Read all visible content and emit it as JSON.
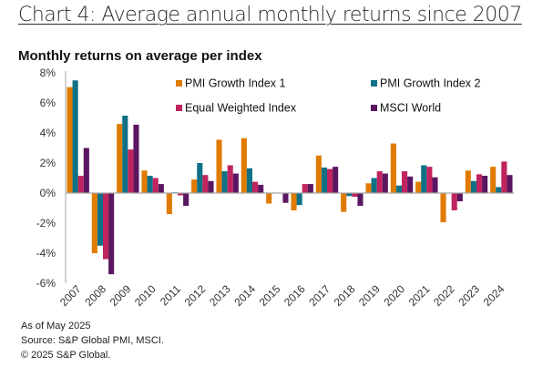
{
  "header": {
    "title": "Chart 4: Average annual monthly returns since 2007",
    "subtitle": "Monthly returns on average per index"
  },
  "footer": {
    "as_of": "As of May 2025",
    "source": "Source: S&P Global PMI, MSCI.",
    "copyright": "© 2025 S&P Global."
  },
  "chart_data": {
    "type": "bar",
    "title": "Monthly returns on average per index",
    "xlabel": "",
    "ylabel": "",
    "ylim": [
      -6,
      8
    ],
    "yticks": [
      8,
      6,
      4,
      2,
      0,
      -2,
      -4,
      -6
    ],
    "ytick_labels": [
      "8%",
      "6%",
      "4%",
      "2%",
      "0%",
      "-2%",
      "-4%",
      "-6%"
    ],
    "grid": false,
    "legend_position": "top-right",
    "categories": [
      "2007",
      "2008",
      "2009",
      "2010",
      "2011",
      "2012",
      "2013",
      "2014",
      "2015",
      "2016",
      "2017",
      "2018",
      "2019",
      "2020",
      "2021",
      "2022",
      "2023",
      "2024"
    ],
    "series": [
      {
        "name": "PMI Growth Index 1",
        "color": "#E07B00",
        "values": [
          7.05,
          -4.0,
          4.6,
          1.5,
          -1.4,
          0.9,
          3.55,
          3.65,
          -0.7,
          -1.15,
          2.5,
          -1.25,
          0.65,
          3.3,
          0.75,
          -1.95,
          1.5,
          1.75
        ]
      },
      {
        "name": "PMI Growth Index 2",
        "color": "#0E7186",
        "values": [
          7.5,
          -3.5,
          5.15,
          1.15,
          0.05,
          2.0,
          1.45,
          1.65,
          0.0,
          -0.8,
          1.7,
          -0.2,
          1.0,
          0.5,
          1.85,
          0.0,
          0.8,
          0.4
        ]
      },
      {
        "name": "Equal Weighted Index",
        "color": "#C0245E",
        "values": [
          1.15,
          -4.4,
          2.9,
          1.0,
          -0.15,
          1.2,
          1.85,
          0.75,
          0.0,
          0.6,
          1.6,
          -0.25,
          1.45,
          1.45,
          1.75,
          -1.15,
          1.25,
          2.1
        ]
      },
      {
        "name": "MSCI World",
        "color": "#5A1660",
        "values": [
          3.0,
          -5.4,
          4.55,
          0.6,
          -0.85,
          0.8,
          1.3,
          0.55,
          -0.65,
          0.6,
          1.75,
          -0.85,
          1.3,
          1.1,
          1.05,
          -0.55,
          1.15,
          1.2
        ]
      }
    ]
  }
}
